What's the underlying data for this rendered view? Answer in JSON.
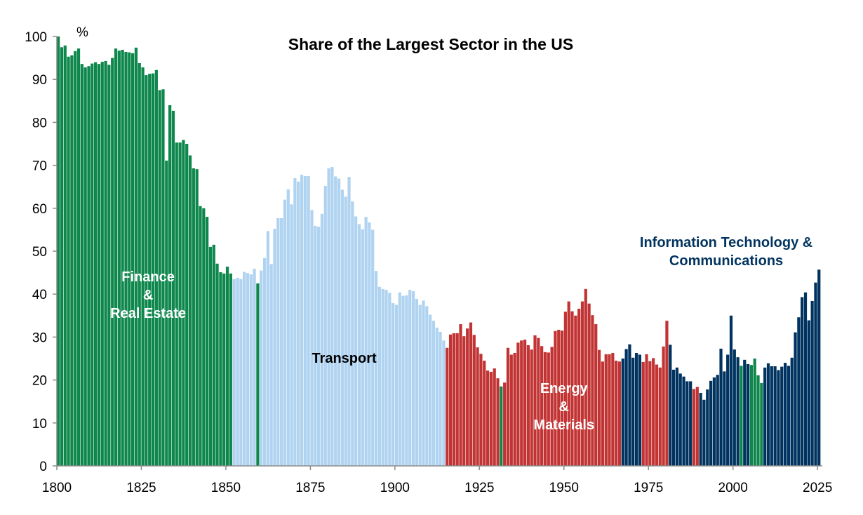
{
  "chart_data": {
    "type": "bar",
    "title": "Share of the Largest Sector in the US",
    "ylabel": "%",
    "xlabel": "",
    "ylim": [
      0,
      100
    ],
    "xlim": [
      1800,
      2025
    ],
    "grid": false,
    "y_ticks": [
      0,
      10,
      20,
      30,
      40,
      50,
      60,
      70,
      80,
      90,
      100
    ],
    "x_ticks": [
      1800,
      1825,
      1850,
      1875,
      1900,
      1925,
      1950,
      1975,
      2000,
      2025
    ],
    "sector_colors": {
      "finance": "#0E874C",
      "transport": "#AFD3F0",
      "energy": "#C23434",
      "tech": "#00335F"
    },
    "annotations": [
      {
        "lines": [
          "Finance",
          "&",
          "Real Estate"
        ],
        "sector": "finance",
        "text_color": "#ffffff",
        "anchor_year": 1827,
        "anchor_value": 43
      },
      {
        "lines": [
          "Transport"
        ],
        "sector": "transport",
        "text_color": "#000000",
        "anchor_year": 1885,
        "anchor_value": 24
      },
      {
        "lines": [
          "Energy",
          "&",
          "Materials"
        ],
        "sector": "energy",
        "text_color": "#ffffff",
        "anchor_year": 1950,
        "anchor_value": 17
      },
      {
        "lines": [
          "Information Technology &",
          "Communications"
        ],
        "sector": "tech",
        "text_color": "#00335F",
        "anchor_year": 1998,
        "anchor_value": 51
      }
    ],
    "start_year": 1800,
    "values": [
      100,
      97.5,
      97.9,
      95.3,
      95.6,
      96.6,
      97.2,
      93.6,
      92.8,
      93.1,
      93.7,
      94,
      93.6,
      94.1,
      94.3,
      93.4,
      95,
      97.2,
      96.7,
      96.9,
      96.4,
      96.3,
      96.1,
      97.4,
      93.8,
      92.8,
      91,
      91.3,
      91.4,
      92.2,
      87.5,
      87.7,
      71.1,
      84,
      82.7,
      75.3,
      75.3,
      75.9,
      75,
      72.3,
      69.3,
      69.1,
      60.5,
      60,
      58,
      51,
      51.5,
      47.1,
      45.1,
      44.8,
      46.4,
      44.8,
      43.5,
      43.8,
      43.5,
      45.2,
      44.9,
      44.6,
      45.9,
      42.5,
      45.5,
      48.4,
      54.7,
      47,
      55.2,
      57.7,
      57.7,
      62,
      64.4,
      60.9,
      67,
      66.2,
      67.8,
      67.5,
      67.5,
      59.6,
      55.9,
      55.7,
      58.7,
      65.2,
      69.3,
      69.6,
      67.4,
      66.9,
      64.3,
      62.7,
      67.3,
      61.6,
      58.1,
      56.3,
      55.1,
      58,
      56.7,
      55,
      45.4,
      41.7,
      41.2,
      41,
      40.3,
      37.9,
      37.5,
      40.4,
      39.6,
      39.7,
      41,
      40.7,
      38.9,
      37.5,
      38.5,
      37.2,
      35.2,
      33.8,
      32.2,
      31.2,
      29.2,
      27.5,
      30.6,
      30.9,
      30.9,
      33,
      30.2,
      32,
      33.4,
      30.5,
      27.6,
      26.1,
      24.5,
      22.2,
      21.9,
      22.7,
      20.4,
      18.5,
      19.4,
      27.5,
      25.9,
      26.3,
      28.7,
      29.2,
      29.4,
      28.1,
      27.1,
      30.4,
      29.8,
      27.9,
      26.5,
      26.4,
      27.7,
      31.4,
      31.7,
      31.5,
      35.9,
      38.3,
      36,
      35,
      36.6,
      38.3,
      41.2,
      37.8,
      35.1,
      33,
      27,
      24.3,
      26,
      26,
      26.3,
      24.5,
      24.3,
      25,
      27.2,
      28.3,
      25.2,
      26.3,
      25.9,
      24.2,
      26,
      24.4,
      25.1,
      23.6,
      22.9,
      27.8,
      33.8,
      28.2,
      22.4,
      22.9,
      21.5,
      20.8,
      19.7,
      19.7,
      17.9,
      18.4,
      17,
      15.4,
      17.8,
      19.8,
      20.6,
      21.2,
      27.3,
      22,
      25.9,
      35,
      27.1,
      25.3,
      23.3,
      24.7,
      23.7,
      23.5,
      25,
      21.1,
      19.3,
      22.9,
      23.9,
      23.2,
      23.2,
      22.3,
      23.1,
      24,
      23.3,
      25.2,
      31.1,
      34.6,
      39.3,
      40.4,
      33.9,
      38.4,
      42.7,
      45.7
    ],
    "sectors_by_period": [
      {
        "from": 1800,
        "to": 1851,
        "sector": "finance"
      },
      {
        "from": 1852,
        "to": 1858,
        "sector": "transport"
      },
      {
        "from": 1859,
        "to": 1859,
        "sector": "finance"
      },
      {
        "from": 1860,
        "to": 1914,
        "sector": "transport"
      },
      {
        "from": 1915,
        "to": 1930,
        "sector": "energy"
      },
      {
        "from": 1931,
        "to": 1931,
        "sector": "finance"
      },
      {
        "from": 1932,
        "to": 1966,
        "sector": "energy"
      },
      {
        "from": 1967,
        "to": 1972,
        "sector": "tech"
      },
      {
        "from": 1973,
        "to": 1980,
        "sector": "energy"
      },
      {
        "from": 1981,
        "to": 1987,
        "sector": "tech"
      },
      {
        "from": 1988,
        "to": 1989,
        "sector": "energy"
      },
      {
        "from": 1990,
        "to": 2001,
        "sector": "tech"
      },
      {
        "from": 2002,
        "to": 2002,
        "sector": "finance"
      },
      {
        "from": 2003,
        "to": 2004,
        "sector": "tech"
      },
      {
        "from": 2005,
        "to": 2008,
        "sector": "finance"
      },
      {
        "from": 2009,
        "to": 2025,
        "sector": "tech"
      }
    ]
  }
}
